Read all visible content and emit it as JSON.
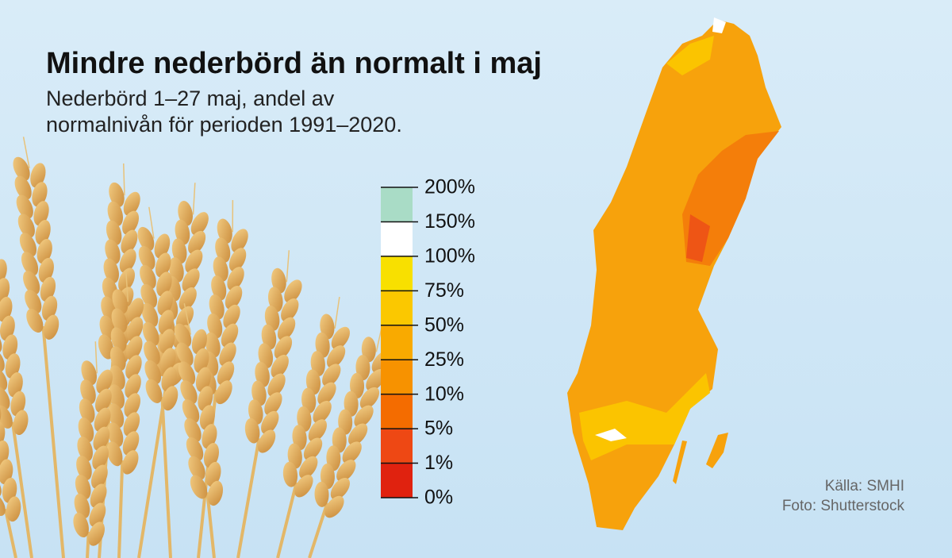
{
  "header": {
    "title": "Mindre nederbörd än normalt i maj",
    "subtitle_lines": [
      "Nederbörd 1–27 maj, andel av",
      "normalnivån för perioden 1991–2020."
    ]
  },
  "legend": {
    "labels": [
      "200%",
      "150%",
      "100%",
      "75%",
      "50%",
      "25%",
      "10%",
      "5%",
      "1%",
      "0%"
    ],
    "colors": [
      "#a9dcc6",
      "#ffffff",
      "#f8e000",
      "#fbc800",
      "#f9aa00",
      "#f79200",
      "#f46c00",
      "#ee4814",
      "#e0220f"
    ]
  },
  "credits": [
    "Källa: SMHI",
    "Foto: Shutterstock"
  ]
}
